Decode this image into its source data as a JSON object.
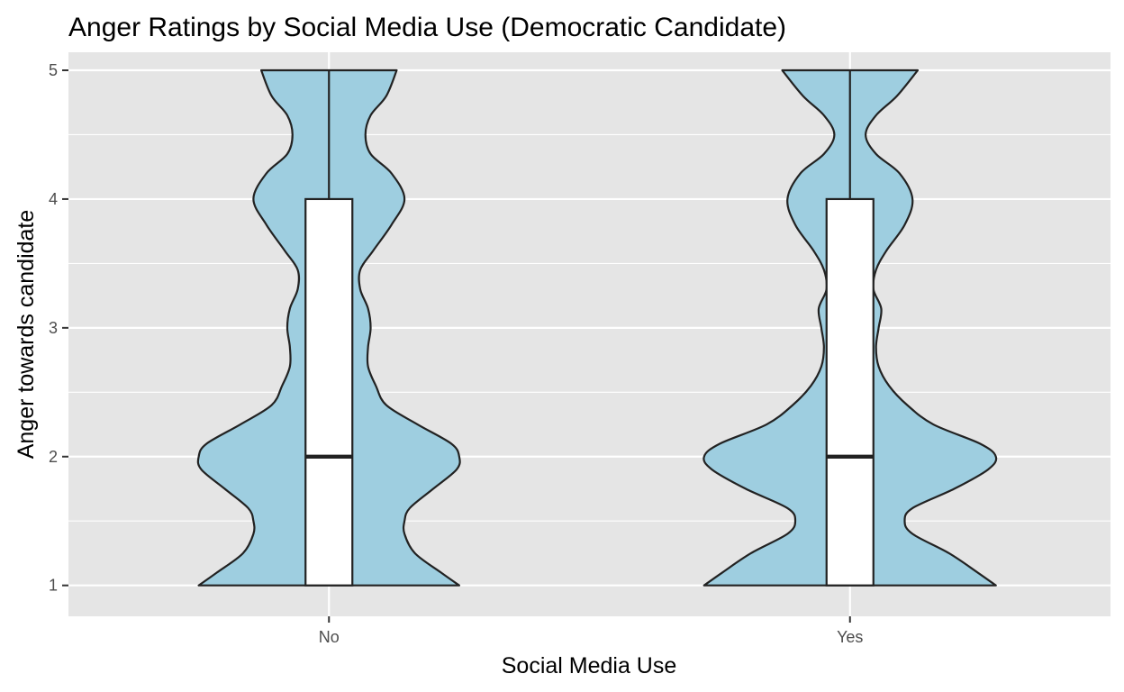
{
  "chart_data": {
    "type": "violin",
    "title": "Anger Ratings by Social Media Use (Democratic Candidate)",
    "xlabel": "Social Media Use",
    "ylabel": "Anger towards candidate",
    "categories": [
      "No",
      "Yes"
    ],
    "ylim": [
      0.76,
      5.14
    ],
    "yticks": [
      1,
      2,
      3,
      4,
      5
    ],
    "grid": true,
    "legend": "none",
    "colors": {
      "panel": "#e5e5e5",
      "grid": "#ffffff",
      "violin_fill": "#9ecee0",
      "outline": "#222222",
      "box_fill": "#ffffff",
      "tick_label": "#4d4d4d"
    },
    "groups": [
      {
        "category": "No",
        "box": {
          "q1": 1,
          "median": 2,
          "q3": 4,
          "whisker_low": 1,
          "whisker_high": 5
        },
        "density": {
          "y": [
            1.0,
            1.1,
            1.25,
            1.4,
            1.5,
            1.6,
            1.75,
            1.9,
            2.0,
            2.1,
            2.25,
            2.4,
            2.55,
            2.7,
            2.85,
            3.0,
            3.15,
            3.3,
            3.45,
            3.6,
            3.8,
            4.0,
            4.2,
            4.35,
            4.5,
            4.65,
            4.8,
            5.0
          ],
          "half_width": [
            0.5,
            0.43,
            0.33,
            0.29,
            0.29,
            0.31,
            0.4,
            0.49,
            0.5,
            0.47,
            0.34,
            0.22,
            0.18,
            0.15,
            0.15,
            0.16,
            0.15,
            0.12,
            0.12,
            0.17,
            0.24,
            0.29,
            0.24,
            0.16,
            0.14,
            0.16,
            0.22,
            0.26
          ]
        }
      },
      {
        "category": "Yes",
        "box": {
          "q1": 1,
          "median": 2,
          "q3": 4,
          "whisker_low": 1,
          "whisker_high": 5
        },
        "density": {
          "y": [
            1.0,
            1.1,
            1.25,
            1.4,
            1.5,
            1.6,
            1.75,
            1.9,
            2.0,
            2.1,
            2.25,
            2.4,
            2.55,
            2.7,
            2.85,
            3.0,
            3.15,
            3.3,
            3.45,
            3.6,
            3.8,
            4.0,
            4.2,
            4.35,
            4.5,
            4.65,
            4.8,
            5.0
          ],
          "half_width": [
            0.56,
            0.49,
            0.38,
            0.24,
            0.21,
            0.24,
            0.4,
            0.53,
            0.56,
            0.5,
            0.32,
            0.22,
            0.15,
            0.11,
            0.1,
            0.11,
            0.12,
            0.09,
            0.1,
            0.14,
            0.21,
            0.24,
            0.19,
            0.1,
            0.06,
            0.1,
            0.18,
            0.26
          ]
        }
      }
    ]
  }
}
